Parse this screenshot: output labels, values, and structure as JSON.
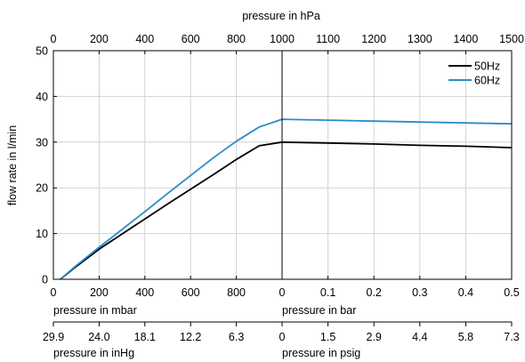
{
  "chart_data": {
    "type": "line",
    "top_axis": {
      "title": "pressure in hPa",
      "ticks": [
        0,
        200,
        400,
        600,
        800,
        1000,
        1100,
        1200,
        1300,
        1400,
        1500
      ]
    },
    "left_axis": {
      "title": "flow rate in l/min",
      "ylim": [
        0,
        50
      ],
      "ticks": [
        0,
        10,
        20,
        30,
        40,
        50
      ]
    },
    "bottom_axis_left": {
      "title": "pressure in mbar",
      "ticks": [
        "0",
        "200",
        "400",
        "600",
        "800"
      ]
    },
    "bottom_axis_right": {
      "title": "pressure in bar",
      "ticks": [
        "0",
        "0.1",
        "0.2",
        "0.3",
        "0.4",
        "0.5"
      ]
    },
    "inhg_axis": {
      "title": "pressure in inHg",
      "ticks": [
        "29.9",
        "24.0",
        "18.1",
        "12.2",
        "6.3"
      ]
    },
    "psig_axis": {
      "title": "pressure in psig",
      "ticks": [
        "0",
        "1.5",
        "2.9",
        "4.4",
        "5.8",
        "7.3"
      ]
    },
    "grid": true,
    "legend_position": "top-right",
    "series": [
      {
        "name": "50Hz",
        "color": "#000000",
        "points": [
          [
            30,
            0
          ],
          [
            100,
            2.8
          ],
          [
            200,
            6.6
          ],
          [
            300,
            9.9
          ],
          [
            400,
            13.2
          ],
          [
            500,
            16.5
          ],
          [
            600,
            19.7
          ],
          [
            700,
            22.9
          ],
          [
            800,
            26.2
          ],
          [
            900,
            29.2
          ],
          [
            1000,
            30
          ],
          [
            1100,
            29.8
          ],
          [
            1200,
            29.6
          ],
          [
            1300,
            29.3
          ],
          [
            1400,
            29.1
          ],
          [
            1500,
            28.8
          ]
        ]
      },
      {
        "name": "60Hz",
        "color": "#2a8cc8",
        "points": [
          [
            30,
            0
          ],
          [
            100,
            3.0
          ],
          [
            200,
            7.0
          ],
          [
            300,
            10.9
          ],
          [
            400,
            14.8
          ],
          [
            500,
            18.8
          ],
          [
            600,
            22.7
          ],
          [
            700,
            26.6
          ],
          [
            800,
            30.2
          ],
          [
            900,
            33.3
          ],
          [
            1000,
            35
          ],
          [
            1100,
            34.8
          ],
          [
            1200,
            34.6
          ],
          [
            1300,
            34.4
          ],
          [
            1400,
            34.2
          ],
          [
            1500,
            34.0
          ]
        ]
      }
    ]
  }
}
